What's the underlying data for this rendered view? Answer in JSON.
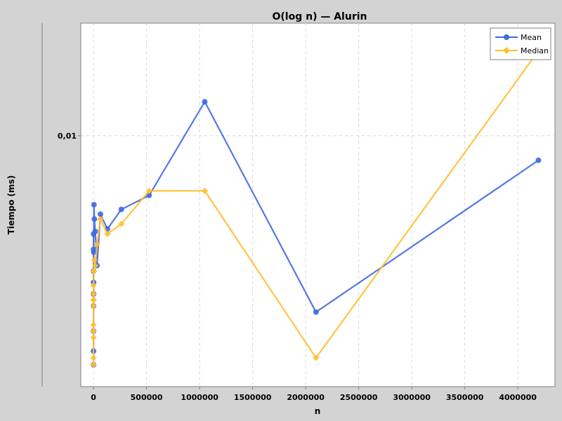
{
  "chart_data": {
    "type": "line",
    "title": "O(log n) — Alurin",
    "xlabel": "n",
    "ylabel": "Tiempo (ms)",
    "x_scale": "linear",
    "y_scale": "log",
    "xlim": [
      -120000,
      4350000
    ],
    "ylim": [
      0.0053,
      0.0133
    ],
    "x_ticks": [
      0,
      500000,
      1000000,
      1500000,
      2000000,
      2500000,
      3000000,
      3500000,
      4000000
    ],
    "x_tick_labels": [
      "0",
      "500000",
      "1000000",
      "1500000",
      "2000000",
      "2500000",
      "3000000",
      "3500000",
      "4000000"
    ],
    "y_ticks": [
      0.01
    ],
    "y_tick_labels": [
      "0,01"
    ],
    "grid": true,
    "legend_position": "top-right",
    "series": [
      {
        "name": "Mean",
        "color": "#4169e1",
        "marker": "circle",
        "points": [
          [
            1,
            0.0056
          ],
          [
            2,
            0.0058
          ],
          [
            4,
            0.0061
          ],
          [
            8,
            0.0075
          ],
          [
            16,
            0.0078
          ],
          [
            32,
            0.0071
          ],
          [
            64,
            0.0065
          ],
          [
            128,
            0.0067
          ],
          [
            512,
            0.0069
          ],
          [
            1024,
            0.0067
          ],
          [
            2048,
            0.00745
          ],
          [
            4096,
            0.0084
          ],
          [
            8192,
            0.0081
          ],
          [
            16384,
            0.00785
          ],
          [
            32768,
            0.0072
          ],
          [
            65536,
            0.0082
          ],
          [
            131072,
            0.0079
          ],
          [
            262144,
            0.0083
          ],
          [
            524288,
            0.0086
          ],
          [
            1048576,
            0.0109
          ],
          [
            2097152,
            0.0064
          ],
          [
            4194304,
            0.0094
          ]
        ]
      },
      {
        "name": "Median",
        "color": "#ffbf2e",
        "marker": "diamond",
        "points": [
          [
            1,
            0.0056
          ],
          [
            2,
            0.0057
          ],
          [
            4,
            0.006
          ],
          [
            8,
            0.0061
          ],
          [
            16,
            0.0062
          ],
          [
            32,
            0.0065
          ],
          [
            64,
            0.0066
          ],
          [
            128,
            0.00685
          ],
          [
            512,
            0.0066
          ],
          [
            1024,
            0.0067
          ],
          [
            2048,
            0.0071
          ],
          [
            4096,
            0.0071
          ],
          [
            8192,
            0.0073
          ],
          [
            16384,
            0.0072
          ],
          [
            32768,
            0.0076
          ],
          [
            65536,
            0.0081
          ],
          [
            131072,
            0.0078
          ],
          [
            262144,
            0.008
          ],
          [
            524288,
            0.0087
          ],
          [
            1048576,
            0.0087
          ],
          [
            2097152,
            0.0057
          ],
          [
            4194304,
            0.0124
          ]
        ]
      }
    ]
  }
}
